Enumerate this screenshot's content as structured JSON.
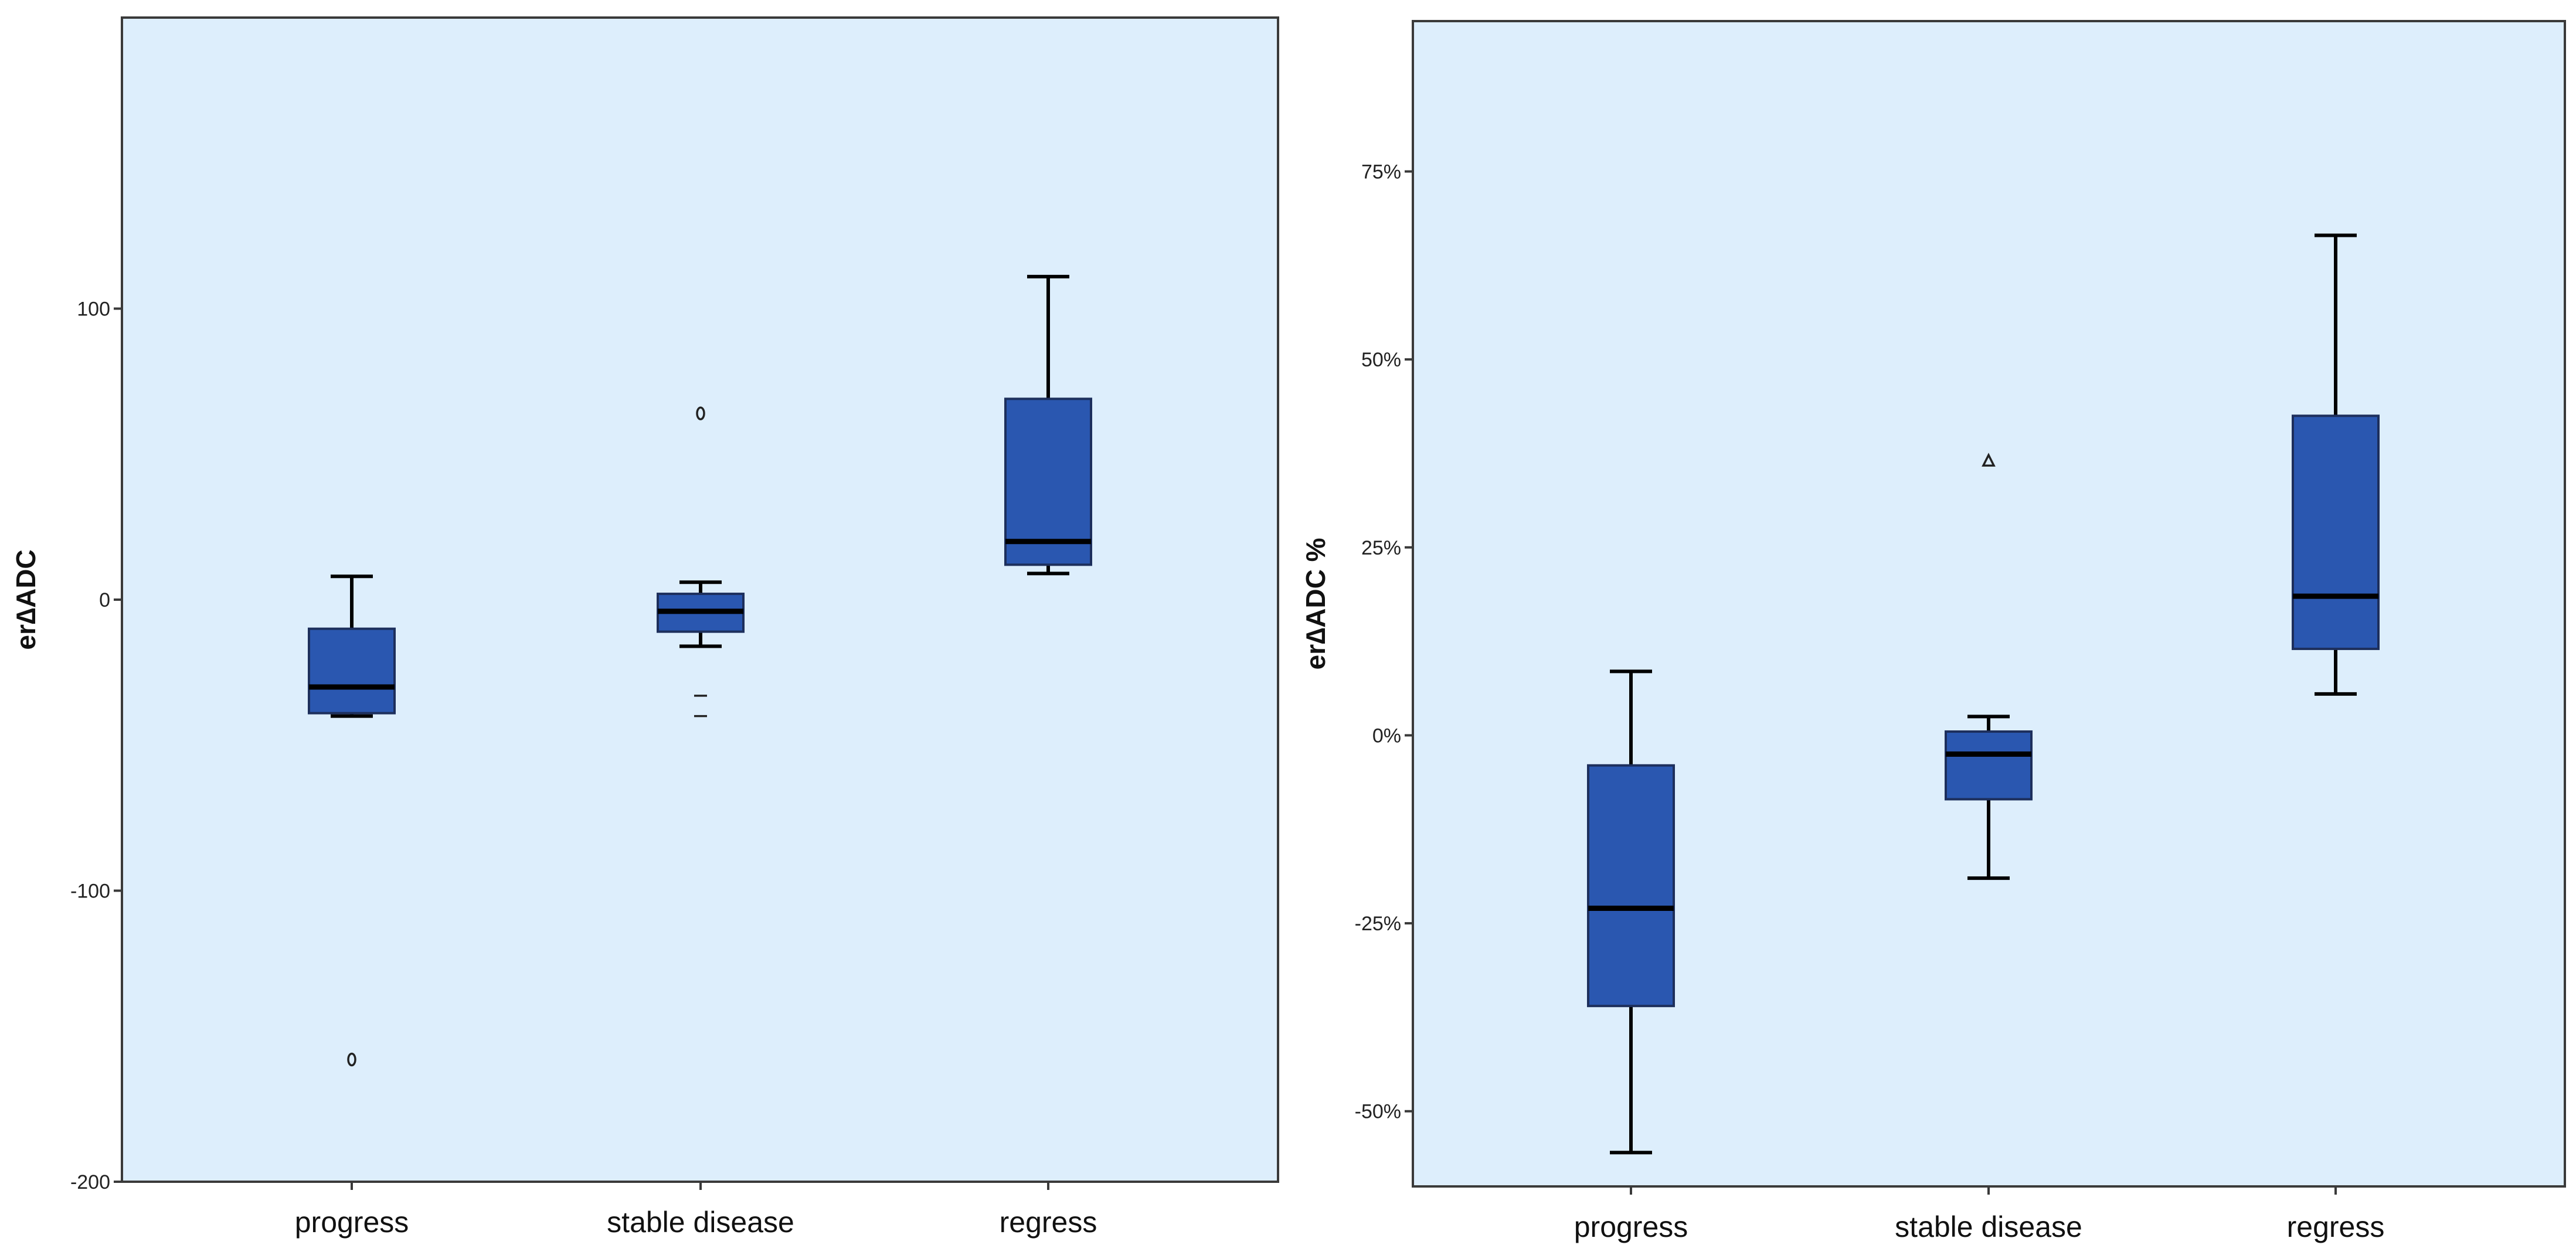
{
  "chart_data": [
    {
      "type": "box",
      "title": "",
      "xlabel": "",
      "ylabel": "er∆ADC",
      "ylim": [
        -200,
        200
      ],
      "yticks": [
        100,
        0,
        -100,
        -200
      ],
      "ytick_labels": [
        "100",
        "0",
        "-100",
        "-200"
      ],
      "categories": [
        "progress",
        "stable disease",
        "regress"
      ],
      "series": [
        {
          "name": "progress",
          "min": -40,
          "q1": -39,
          "median": -30,
          "q3": -10,
          "max": 8,
          "outliers": [
            {
              "value": -158,
              "marker": "circle"
            }
          ]
        },
        {
          "name": "stable disease",
          "min": -16,
          "q1": -11,
          "median": -4,
          "q3": 2,
          "max": 6,
          "outliers": [
            {
              "value": 64,
              "marker": "circle"
            },
            {
              "value": -33,
              "marker": "dash"
            },
            {
              "value": -40,
              "marker": "dash"
            }
          ]
        },
        {
          "name": "regress",
          "min": 9,
          "q1": 12,
          "median": 20,
          "q3": 69,
          "max": 111,
          "outliers": []
        }
      ]
    },
    {
      "type": "box",
      "title": "",
      "xlabel": "",
      "ylabel": "er∆ADC %",
      "ylim": [
        -60,
        95
      ],
      "yticks": [
        75,
        50,
        25,
        0,
        -25,
        -50
      ],
      "ytick_labels": [
        "75%",
        "50%",
        "25%",
        "0%",
        "-25%",
        "-50%"
      ],
      "categories": [
        "progress",
        "stable disease",
        "regress"
      ],
      "series": [
        {
          "name": "progress",
          "min": -55.5,
          "q1": -36,
          "median": -23,
          "q3": -4,
          "max": 8.5,
          "outliers": []
        },
        {
          "name": "stable disease",
          "min": -19,
          "q1": -8.5,
          "median": -2.5,
          "q3": 0.5,
          "max": 2.5,
          "outliers": [
            {
              "value": 36.5,
              "marker": "triangle"
            }
          ]
        },
        {
          "name": "regress",
          "min": 5.5,
          "q1": 11.5,
          "median": 18.5,
          "q3": 42.5,
          "max": 66.5,
          "outliers": []
        }
      ]
    }
  ]
}
